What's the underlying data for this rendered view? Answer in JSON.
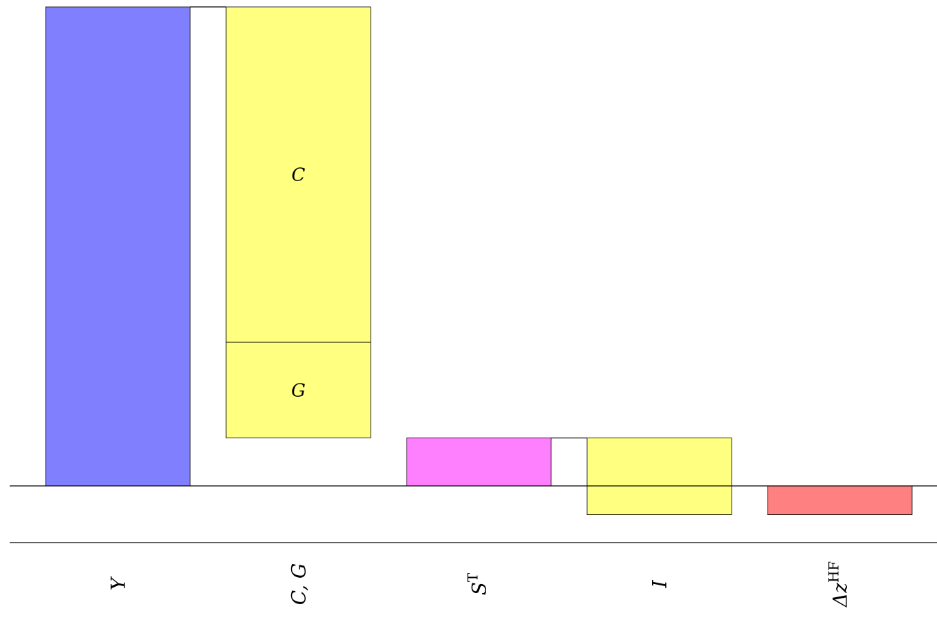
{
  "chart_data": {
    "type": "bar",
    "subtype": "waterfall",
    "categories": [
      "Y",
      "C, G",
      "S^T",
      "I",
      "Δz^HF"
    ],
    "bars": [
      {
        "category": "Y",
        "bottom": 0,
        "top": 1.0,
        "color": "#8080ff"
      },
      {
        "category": "C, G",
        "bottom": 0.1,
        "top": 1.0,
        "color": "#ffff80",
        "segments": [
          {
            "label": "G",
            "bottom": 0.1,
            "top": 0.3
          },
          {
            "label": "C",
            "bottom": 0.3,
            "top": 1.0
          }
        ]
      },
      {
        "category": "S^T",
        "bottom": 0,
        "top": 0.1,
        "color": "#ff80ff"
      },
      {
        "category": "I",
        "bottom": -0.06,
        "top": 0.1,
        "color": "#ffff80"
      },
      {
        "category": "Δz^HF",
        "bottom": -0.06,
        "top": 0,
        "color": "#ff8080"
      }
    ],
    "connectors": [
      {
        "from": 0,
        "to": 1,
        "level": 1.0
      },
      {
        "from": 2,
        "to": 3,
        "level": 0.1
      }
    ],
    "tick_labels": {
      "Y": {
        "main": "Y"
      },
      "C, G": {
        "main": "C, G"
      },
      "S^T": {
        "main": "S",
        "sup": "T"
      },
      "I": {
        "main": "I"
      },
      "Δz^HF": {
        "main": "Δz",
        "sup": "HF"
      }
    },
    "ylim": [
      -0.06,
      1.0
    ],
    "baseline": 0,
    "grid": false,
    "legend": "none",
    "title": "",
    "xlabel": "",
    "ylabel": ""
  }
}
